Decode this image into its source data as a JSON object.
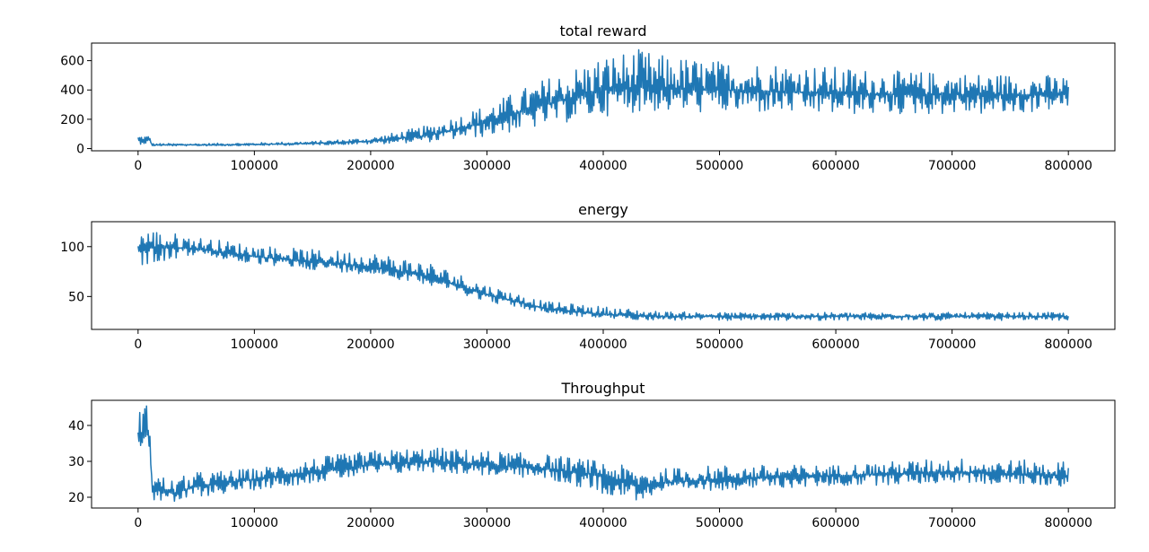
{
  "chart_data": [
    {
      "type": "line",
      "title": "total reward",
      "xlabel": "",
      "ylabel": "",
      "xlim": [
        -40000,
        840000
      ],
      "ylim": [
        -15,
        720
      ],
      "xticks": [
        0,
        100000,
        200000,
        300000,
        400000,
        500000,
        600000,
        700000,
        800000
      ],
      "xtick_labels": [
        "0",
        "100000",
        "200000",
        "300000",
        "400000",
        "500000",
        "600000",
        "700000",
        "800000"
      ],
      "yticks": [
        0,
        200,
        400,
        600
      ],
      "ytick_labels": [
        "0",
        "200",
        "400",
        "600"
      ],
      "grid": false,
      "color": "#1f77b4",
      "series": [
        {
          "x": [
            0,
            10000,
            12000,
            50000,
            100000,
            150000,
            200000,
            250000,
            300000,
            350000,
            400000,
            430000,
            450000,
            500000,
            550000,
            600000,
            650000,
            700000,
            750000,
            800000
          ],
          "mean": [
            60,
            60,
            25,
            25,
            28,
            35,
            50,
            90,
            180,
            300,
            400,
            420,
            410,
            400,
            390,
            375,
            370,
            370,
            365,
            370
          ],
          "min": [
            30,
            30,
            18,
            18,
            20,
            25,
            30,
            45,
            80,
            150,
            220,
            250,
            250,
            240,
            240,
            230,
            230,
            235,
            225,
            280
          ],
          "max": [
            90,
            90,
            35,
            35,
            40,
            50,
            75,
            160,
            300,
            480,
            640,
            680,
            640,
            600,
            590,
            560,
            530,
            520,
            510,
            500
          ]
        }
      ]
    },
    {
      "type": "line",
      "title": "energy",
      "xlabel": "",
      "ylabel": "",
      "xlim": [
        -40000,
        840000
      ],
      "ylim": [
        17,
        125
      ],
      "xticks": [
        0,
        100000,
        200000,
        300000,
        400000,
        500000,
        600000,
        700000,
        800000
      ],
      "xtick_labels": [
        "0",
        "100000",
        "200000",
        "300000",
        "400000",
        "500000",
        "600000",
        "700000",
        "800000"
      ],
      "yticks": [
        50,
        100
      ],
      "ytick_labels": [
        "50",
        "100"
      ],
      "grid": false,
      "color": "#1f77b4",
      "series": [
        {
          "x": [
            0,
            50000,
            100000,
            150000,
            200000,
            250000,
            300000,
            350000,
            400000,
            450000,
            500000,
            600000,
            700000,
            800000
          ],
          "mean": [
            100,
            98,
            90,
            85,
            80,
            70,
            52,
            38,
            32,
            30,
            30,
            30,
            30,
            30
          ],
          "min": [
            80,
            92,
            82,
            77,
            72,
            62,
            45,
            33,
            28,
            26,
            26,
            26,
            26,
            26
          ],
          "max": [
            120,
            110,
            102,
            97,
            95,
            85,
            62,
            45,
            40,
            35,
            34,
            34,
            34,
            34
          ]
        }
      ]
    },
    {
      "type": "line",
      "title": "Throughput",
      "xlabel": "",
      "ylabel": "",
      "xlim": [
        -40000,
        840000
      ],
      "ylim": [
        17,
        47
      ],
      "xticks": [
        0,
        100000,
        200000,
        300000,
        400000,
        500000,
        600000,
        700000,
        800000
      ],
      "xtick_labels": [
        "0",
        "100000",
        "200000",
        "300000",
        "400000",
        "500000",
        "600000",
        "700000",
        "800000"
      ],
      "yticks": [
        20,
        30,
        40
      ],
      "ytick_labels": [
        "20",
        "30",
        "40"
      ],
      "grid": false,
      "color": "#1f77b4",
      "series": [
        {
          "x": [
            0,
            10000,
            12000,
            30000,
            50000,
            100000,
            150000,
            200000,
            250000,
            300000,
            350000,
            400000,
            430000,
            450000,
            500000,
            600000,
            700000,
            800000
          ],
          "mean": [
            38,
            38,
            23,
            21,
            23,
            25,
            27,
            29,
            30,
            29,
            28,
            26,
            23,
            24,
            25,
            26,
            27,
            26
          ],
          "min": [
            34,
            34,
            19,
            18,
            20,
            22,
            24,
            26,
            27,
            26,
            25,
            21,
            19,
            21,
            22,
            23,
            24,
            23
          ],
          "max": [
            46,
            46,
            27,
            25,
            27,
            28,
            31,
            33,
            34,
            33,
            32,
            30,
            28,
            28,
            29,
            29,
            31,
            30
          ]
        }
      ]
    }
  ]
}
